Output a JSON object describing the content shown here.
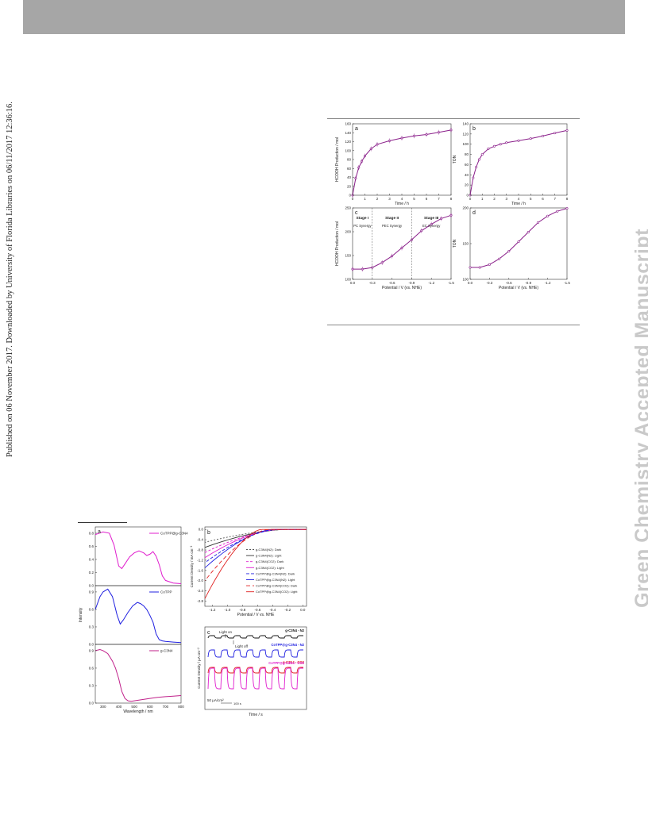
{
  "side_note": "Published on 06 November 2017. Downloaded by University of Florida Libraries on 06/11/2017 12:36:16.",
  "watermark": "Green Chemistry Accepted Manuscript",
  "fig_right": {
    "panel_a": {
      "label": "a",
      "ylabel": "HCOOH Production / mol",
      "xlabel": "Time / h",
      "xticks": [
        "0",
        "1",
        "2",
        "3",
        "4",
        "5",
        "6",
        "7",
        "8"
      ],
      "yticks": [
        "0",
        "20",
        "40",
        "60",
        "80",
        "100",
        "120",
        "140",
        "160"
      ],
      "x": [
        0,
        0.25,
        0.5,
        0.75,
        1,
        1.5,
        2,
        3,
        4,
        5,
        6,
        7,
        8
      ],
      "y": [
        0,
        38,
        62,
        76,
        88,
        104,
        114,
        122,
        128,
        133,
        136,
        141,
        146
      ]
    },
    "panel_b": {
      "label": "b",
      "ylabel": "TON",
      "xlabel": "Time / h",
      "xticks": [
        "0",
        "1",
        "2",
        "3",
        "4",
        "5",
        "6",
        "7",
        "8"
      ],
      "yticks": [
        "0",
        "20",
        "40",
        "60",
        "80",
        "100",
        "120",
        "140"
      ],
      "x": [
        0,
        0.25,
        0.5,
        0.75,
        1,
        1.5,
        2,
        2.5,
        3,
        4,
        5,
        6,
        7,
        8
      ],
      "y": [
        0,
        34,
        55,
        70,
        80,
        91,
        96,
        100,
        103,
        107,
        111,
        116,
        122,
        127
      ]
    },
    "panel_c": {
      "label": "c",
      "ylabel": "HCOOH Production / mol",
      "xlabel": "Potential / V (vs. NHE)",
      "stages": [
        "Stage I",
        "Stage II",
        "Stage III"
      ],
      "stage_notes": [
        "PC Synergy",
        "PEC Synergy",
        "EC Synergy"
      ],
      "xticks": [
        "0.0",
        "-0.3",
        "-0.6",
        "-0.9",
        "-1.2",
        "-1.5"
      ],
      "yticks": [
        "100",
        "150",
        "200",
        "250"
      ],
      "x": [
        0,
        -0.15,
        -0.3,
        -0.45,
        -0.6,
        -0.75,
        -0.9,
        -1.05,
        -1.2,
        -1.35,
        -1.5
      ],
      "y": [
        100,
        100,
        104,
        116,
        132,
        152,
        172,
        194,
        210,
        224,
        232
      ]
    },
    "panel_d": {
      "label": "d",
      "ylabel": "TON",
      "xlabel": "Potential / V (vs. NHE)",
      "xticks": [
        "0.0",
        "-0.3",
        "-0.6",
        "-0.9",
        "-1.2",
        "-1.5"
      ],
      "yticks": [
        "100",
        "150",
        "200"
      ],
      "x": [
        0,
        -0.15,
        -0.3,
        -0.45,
        -0.6,
        -0.75,
        -0.9,
        -1.05,
        -1.2,
        -1.35,
        -1.5
      ],
      "y": [
        100,
        100,
        106,
        118,
        134,
        154,
        174,
        194,
        208,
        218,
        224
      ]
    }
  },
  "fig_left": {
    "panel_a": {
      "label": "a",
      "ylabel": "Intensity",
      "xlabel": "Wavelength / nm",
      "xticks": [
        "300",
        "400",
        "500",
        "600",
        "700",
        "800"
      ],
      "subpanels": [
        {
          "name": "CoTPP@g-C3N4",
          "color": "#e01ccd",
          "yticks": [
            "0.0",
            "0.2",
            "0.4",
            "0.6",
            "0.8"
          ],
          "x": [
            250,
            300,
            340,
            370,
            400,
            420,
            440,
            470,
            500,
            530,
            560,
            580,
            600,
            620,
            640,
            660,
            680,
            700,
            750,
            800
          ],
          "y": [
            0.78,
            0.82,
            0.8,
            0.62,
            0.3,
            0.26,
            0.33,
            0.44,
            0.5,
            0.53,
            0.5,
            0.46,
            0.48,
            0.52,
            0.45,
            0.32,
            0.15,
            0.08,
            0.04,
            0.03
          ]
        },
        {
          "name": "CoTPP",
          "color": "#2020e0",
          "yticks": [
            "0.0",
            "0.3",
            "0.6",
            "0.9"
          ],
          "x": [
            250,
            280,
            300,
            330,
            360,
            390,
            410,
            430,
            460,
            490,
            520,
            540,
            560,
            580,
            600,
            620,
            640,
            660,
            680,
            700,
            750,
            800
          ],
          "y": [
            0.6,
            0.82,
            0.9,
            0.95,
            0.82,
            0.5,
            0.35,
            0.42,
            0.55,
            0.66,
            0.72,
            0.7,
            0.66,
            0.6,
            0.5,
            0.38,
            0.18,
            0.08,
            0.06,
            0.05,
            0.04,
            0.03
          ]
        },
        {
          "name": "g-C3N4",
          "color": "#c0208a",
          "yticks": [
            "0.0",
            "0.3",
            "0.6",
            "0.9"
          ],
          "x": [
            250,
            280,
            300,
            330,
            360,
            380,
            400,
            420,
            440,
            460,
            480,
            500,
            550,
            600,
            650,
            700,
            750,
            800
          ],
          "y": [
            0.9,
            0.92,
            0.9,
            0.85,
            0.72,
            0.6,
            0.42,
            0.2,
            0.08,
            0.04,
            0.03,
            0.04,
            0.06,
            0.08,
            0.1,
            0.11,
            0.12,
            0.13
          ]
        }
      ]
    },
    "panel_b": {
      "label": "b",
      "ylabel": "Current Density / mA cm⁻²",
      "xlabel": "Potential / V vs. NHE",
      "xticks": [
        "-1.2",
        "-1.0",
        "-0.8",
        "-0.6",
        "-0.4",
        "-0.2",
        "0.0"
      ],
      "yticks": [
        "0.0",
        "-0.4",
        "-0.8",
        "-1.2",
        "-1.6",
        "-2.0",
        "-2.4",
        "-2.8"
      ],
      "legend": [
        "g-C3N4(N2): Dark",
        "g-C3N4(N2): Light",
        "g-C3N4(CO2): Dark",
        "g-C3N4(CO2): Light",
        "CoTPP@g-C3N4(N2): Dark",
        "CoTPP@g-C3N4(N2): Light",
        "CoTPP@g-C3N4(CO2): Dark",
        "CoTPP@g-C3N4(CO2): Light"
      ],
      "series": [
        {
          "color": "#555555",
          "dash": "2,2",
          "onset": -0.2,
          "end": -0.5
        },
        {
          "color": "#333333",
          "dash": "",
          "onset": -0.25,
          "end": -0.7
        },
        {
          "color": "#e01ccd",
          "dash": "3,2",
          "onset": -0.3,
          "end": -0.9
        },
        {
          "color": "#e01ccd",
          "dash": "",
          "onset": -0.35,
          "end": -1.1
        },
        {
          "color": "#2020e0",
          "dash": "4,2",
          "onset": -0.35,
          "end": -1.3
        },
        {
          "color": "#2020e0",
          "dash": "",
          "onset": -0.4,
          "end": -1.5
        },
        {
          "color": "#e02020",
          "dash": "5,3",
          "onset": -0.45,
          "end": -2.0
        },
        {
          "color": "#e02020",
          "dash": "",
          "onset": -0.55,
          "end": -2.7
        }
      ]
    },
    "panel_c": {
      "label": "c",
      "ylabel": "Current Density / μA cm⁻²",
      "xlabel": "Time / s",
      "light_on": "Light on",
      "light_off": "Light off",
      "scale": "50 μA/cm²",
      "scale_time": "100 s",
      "traces": [
        {
          "name": "g-C3N4 - N2",
          "color": "#111111",
          "amp": 3
        },
        {
          "name": "CoTPP@g-C3N4 - N2",
          "color": "#2020e0",
          "amp": 9
        },
        {
          "name": "g-C3N4 - CO2",
          "color": "#e02020",
          "amp": 7
        },
        {
          "name": "CoTPP@g-C3N4 - CO2",
          "color": "#e01ccd",
          "amp": 26
        }
      ]
    }
  }
}
